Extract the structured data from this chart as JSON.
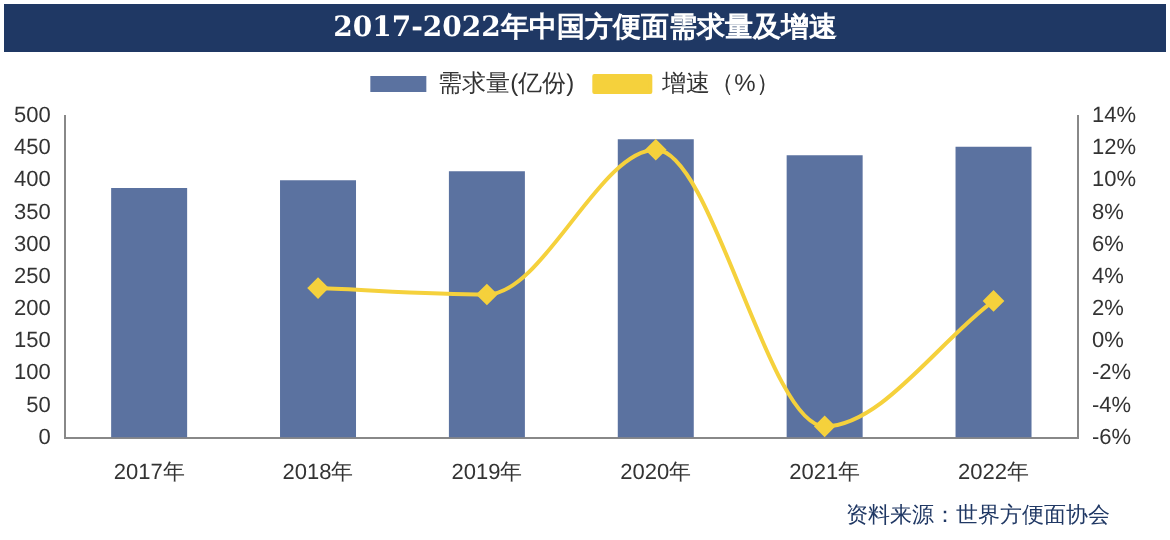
{
  "chart_data": {
    "type": "bar",
    "title": "2017-2022年中国方便面需求量及增速",
    "categories": [
      "2017年",
      "2018年",
      "2019年",
      "2020年",
      "2021年",
      "2022年"
    ],
    "series": [
      {
        "name": "需求量(亿份)",
        "color": "#5b72a0",
        "values": [
          388,
          400,
          414,
          464,
          439,
          452
        ]
      },
      {
        "name": "增速（%）",
        "type": "line",
        "axis": "y2",
        "color": "#f5d13c",
        "marker": "diamond",
        "values": [
          null,
          3.3,
          2.9,
          11.9,
          -5.3,
          2.5
        ]
      }
    ],
    "ylim": [
      0,
      500
    ],
    "yticks": [
      0,
      50,
      100,
      150,
      200,
      250,
      300,
      350,
      400,
      450,
      500
    ],
    "y2lim": [
      -6,
      14
    ],
    "y2ticks": [
      {
        "value": -6,
        "label": "-6%"
      },
      {
        "value": -4,
        "label": "-4%"
      },
      {
        "value": -2,
        "label": "-2%"
      },
      {
        "value": 0,
        "label": "0%"
      },
      {
        "value": 2,
        "label": "2%"
      },
      {
        "value": 4,
        "label": "4%"
      },
      {
        "value": 6,
        "label": "6%"
      },
      {
        "value": 8,
        "label": "8%"
      },
      {
        "value": 10,
        "label": "10%"
      },
      {
        "value": 12,
        "label": "12%"
      },
      {
        "value": 14,
        "label": "14%"
      }
    ],
    "legend": "top",
    "grid": false,
    "annotations": [
      "资料来源：世界方便面协会"
    ]
  }
}
